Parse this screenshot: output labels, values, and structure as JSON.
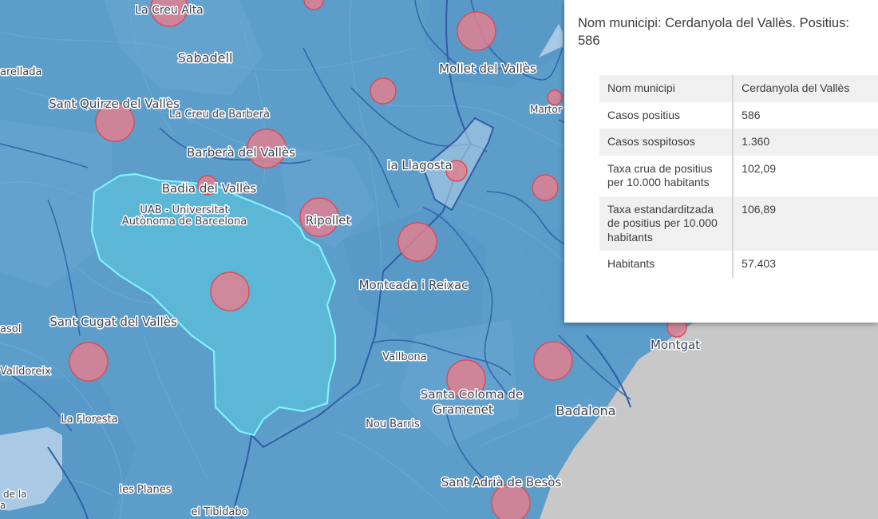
{
  "map": {
    "colors": {
      "base": "#5a98c6",
      "land": "#5f9fcc",
      "selected": "#5cbcd8",
      "selected_outline": "#7ff2ff",
      "boundary": "#2f62a7",
      "bubble_fill": "#e08090",
      "bubble_stroke": "#d2505e",
      "sea": "#c8c8c8",
      "street": "#6aa8d3"
    },
    "place_labels": [
      {
        "id": "la-creu-alta",
        "text": "La Creu Alta"
      },
      {
        "id": "sabadell",
        "text": "Sabadell"
      },
      {
        "id": "mollet",
        "text": "Mollet del Vallès"
      },
      {
        "id": "arellada",
        "text": "arellada"
      },
      {
        "id": "sant-quirze",
        "text": "Sant Quirze del Vallès"
      },
      {
        "id": "la-creu-barbera",
        "text": "La Creu de Barberà"
      },
      {
        "id": "barbera",
        "text": "Barberà del Vallès"
      },
      {
        "id": "la-llagosta",
        "text": "la Llagosta"
      },
      {
        "id": "badia",
        "text": "Badia del Vallès"
      },
      {
        "id": "uab-1",
        "text": "UAB - Universitat"
      },
      {
        "id": "uab-2",
        "text": "Autònoma de Barcelona"
      },
      {
        "id": "ripollet",
        "text": "Ripollet"
      },
      {
        "id": "martorelles",
        "text": "Martor"
      },
      {
        "id": "montcada",
        "text": "Montcada i Reixac"
      },
      {
        "id": "sant-cugat",
        "text": "Sant Cugat del Vallès"
      },
      {
        "id": "asol",
        "text": "asol"
      },
      {
        "id": "montgat",
        "text": "Montgat"
      },
      {
        "id": "vallbona",
        "text": "Vallbona"
      },
      {
        "id": "valldoreix",
        "text": "Valldoreix"
      },
      {
        "id": "santa-coloma-1",
        "text": "Santa Coloma de"
      },
      {
        "id": "santa-coloma-2",
        "text": "Gramenet"
      },
      {
        "id": "badalona",
        "text": "Badalona"
      },
      {
        "id": "la-floresta",
        "text": "La Floresta"
      },
      {
        "id": "nou-barris",
        "text": "Nou Barris"
      },
      {
        "id": "sant-adria",
        "text": "Sant Adrià de Besòs"
      },
      {
        "id": "les-planes",
        "text": "les Planes"
      },
      {
        "id": "el-tibidabo",
        "text": "el Tibidabo"
      },
      {
        "id": "de-la-1",
        "text": "de la"
      },
      {
        "id": "de-la-2",
        "text": "a"
      }
    ],
    "bubbles": [
      {
        "id": "la-creu-alta"
      },
      {
        "id": "top-center"
      },
      {
        "id": "mollet"
      },
      {
        "id": "sant-quirze"
      },
      {
        "id": "north-center"
      },
      {
        "id": "martorelles"
      },
      {
        "id": "barbera"
      },
      {
        "id": "badia"
      },
      {
        "id": "la-llagosta"
      },
      {
        "id": "east"
      },
      {
        "id": "ripollet"
      },
      {
        "id": "montcada"
      },
      {
        "id": "cerdanyola"
      },
      {
        "id": "sant-cugat"
      },
      {
        "id": "montgat"
      },
      {
        "id": "santa-coloma"
      },
      {
        "id": "badalona"
      },
      {
        "id": "sant-adria"
      }
    ]
  },
  "popup": {
    "title": "Nom municipi: Cerdanyola del Vallès. Positius: 586",
    "rows": [
      {
        "key": "Nom municipi",
        "value": "Cerdanyola del Vallès"
      },
      {
        "key": "Casos positius",
        "value": "586"
      },
      {
        "key": "Casos sospitosos",
        "value": "1.360"
      },
      {
        "key": "Taxa crua de positius per 10.000 habitants",
        "value": "102,09"
      },
      {
        "key": "Taxa estandarditzada de positius per 10.000 habitants",
        "value": "106,89"
      },
      {
        "key": "Habitants",
        "value": "57.403"
      }
    ]
  }
}
